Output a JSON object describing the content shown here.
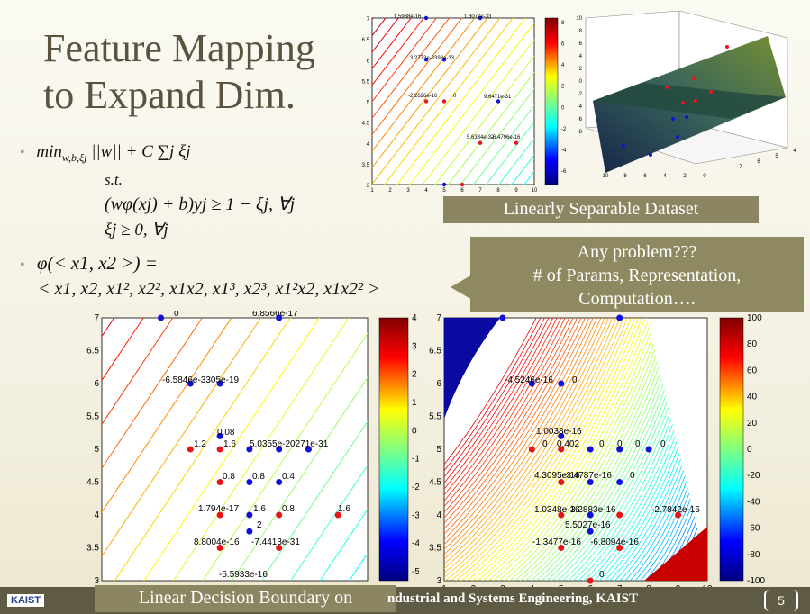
{
  "slide": {
    "title_line1": "Feature Mapping",
    "title_line2": "to Expand Dim.",
    "bullet1_line1": "min",
    "bullet1_sub": "w,b,ξj",
    "bullet1_rest": "||w|| + C ∑j ξj",
    "bullet1_st": "s.t.",
    "bullet1_c1": "(wφ(xj) + b)yj ≥ 1 − ξj, ∀j",
    "bullet1_c2": "ξj ≥ 0, ∀j",
    "bullet2_line1": "φ(< x1, x2 >) =",
    "bullet2_line2": "< x1, x2, x1², x2², x1x2, x1³, x2³, x1²x2, x1x2² >",
    "caption_top": "Linearly Separable Dataset",
    "callout_l1": "Any problem???",
    "callout_l2": "# of Params, Representation,",
    "callout_l3": "Computation….",
    "caption_bottom": "Linear Decision Boundary on",
    "footer_text": "ndustrial and Systems Engineering, KAIST",
    "logo": "KAIST",
    "page_number": "5"
  },
  "colors": {
    "title": "#5b5340",
    "caption_bg": "#8b8561",
    "footer_bg": "#5e5a44",
    "red_point": "#e8141b",
    "blue_point": "#1010d8"
  },
  "chart_data": [
    {
      "type": "scatter",
      "name_hint": "top-left contour plot",
      "xlim": [
        1,
        10
      ],
      "ylim": [
        3,
        7
      ],
      "x_ticks": [
        "1",
        "2",
        "3",
        "4",
        "5",
        "6",
        "7",
        "8",
        "9",
        "10"
      ],
      "y_ticks": [
        "3",
        "3.5",
        "4",
        "4.5",
        "5",
        "5.5",
        "6",
        "6.5",
        "7"
      ],
      "colorbar_ticks": [
        "8",
        "6",
        "4",
        "2",
        "0",
        "-2",
        "-4",
        "-6"
      ],
      "labels": [
        "1.5988e-16",
        "1.8077e-33",
        "3.2773e-3393e-33",
        "-2.2626e-16",
        "0",
        "9.6471e-31",
        "5.6384e-32",
        "-6.4796e-16"
      ],
      "red_points": [
        [
          4,
          5
        ],
        [
          5,
          5
        ],
        [
          7,
          4
        ],
        [
          9,
          4
        ],
        [
          6,
          3
        ]
      ],
      "blue_points": [
        [
          4,
          7
        ],
        [
          7,
          7
        ],
        [
          4,
          6
        ],
        [
          5,
          6
        ],
        [
          8,
          5
        ],
        [
          5,
          3
        ]
      ]
    },
    {
      "type": "scatter",
      "name_hint": "top-right 3D surface plot",
      "x_ticks": [
        "10",
        "8",
        "6",
        "4",
        "2",
        "0"
      ],
      "y_ticks": [
        "7",
        "6",
        "5",
        "4"
      ],
      "z_ticks": [
        "10",
        "8",
        "6",
        "4",
        "2",
        "0",
        "-2",
        "-4",
        "-6",
        "-8"
      ]
    },
    {
      "type": "scatter",
      "name_hint": "bottom-left contour plot",
      "xlim": [
        1,
        10
      ],
      "ylim": [
        3,
        7
      ],
      "y_ticks": [
        "3",
        "3.5",
        "4",
        "4.5",
        "5",
        "5.5",
        "6",
        "6.5",
        "7"
      ],
      "colorbar_ticks": [
        "4",
        "3",
        "2",
        "1",
        "0",
        "-1",
        "-2",
        "-3",
        "-4",
        "-5"
      ],
      "labels": [
        "0",
        "6.8566e-17",
        "-6.5846e-3305e-19",
        "0.08",
        "1.2",
        "1.6",
        "5.0355e-20271e-31",
        "0.8",
        "0.8",
        "0.4",
        "1.794e-17",
        "1.6",
        "0.8",
        "1.6",
        "2",
        "8.8004e-16",
        "-7.4413e-31",
        "-5.5933e-16"
      ],
      "red_points": [
        [
          4,
          5
        ],
        [
          5,
          5
        ],
        [
          5,
          4.5
        ],
        [
          5,
          4
        ],
        [
          7,
          4
        ],
        [
          9,
          4
        ],
        [
          5,
          3.5
        ],
        [
          7,
          3.5
        ]
      ],
      "blue_points": [
        [
          3,
          7
        ],
        [
          7,
          7
        ],
        [
          4,
          6
        ],
        [
          5,
          6
        ],
        [
          5,
          5.2
        ],
        [
          6,
          5
        ],
        [
          7,
          5
        ],
        [
          8,
          5
        ],
        [
          6,
          4.5
        ],
        [
          7,
          4.5
        ],
        [
          6,
          4
        ],
        [
          6,
          3.75
        ]
      ]
    },
    {
      "type": "scatter",
      "name_hint": "bottom-right contour plot",
      "xlim": [
        1,
        10
      ],
      "ylim": [
        3,
        7
      ],
      "x_ticks": [
        "1",
        "2",
        "3",
        "4",
        "5",
        "6",
        "7",
        "8",
        "9",
        "10"
      ],
      "y_ticks": [
        "3",
        "3.5",
        "4",
        "4.5",
        "5",
        "5.5",
        "6",
        "6.5",
        "7"
      ],
      "colorbar_ticks": [
        "100",
        "80",
        "60",
        "40",
        "20",
        "0",
        "-20",
        "-40",
        "-60",
        "-80",
        "-100"
      ],
      "labels": [
        "-4.5246e-16",
        "0",
        "1.0038e-16",
        "0",
        "0.402",
        "0",
        "0",
        "0",
        "0",
        "4.3095e-16",
        "-3.4787e-16",
        "0",
        "1.0348e-16",
        "3.2883e-16",
        "-2.7842e-16",
        "5.5027e-16",
        "-1.3477e-16",
        "-6.8094e-16",
        "0"
      ],
      "red_points": [
        [
          4,
          5
        ],
        [
          5,
          5
        ],
        [
          5,
          4.5
        ],
        [
          5,
          4
        ],
        [
          7,
          4
        ],
        [
          9,
          4
        ],
        [
          5,
          3.5
        ],
        [
          7,
          3.5
        ],
        [
          6,
          3
        ]
      ],
      "blue_points": [
        [
          3,
          7
        ],
        [
          7,
          7
        ],
        [
          4,
          6
        ],
        [
          5,
          6
        ],
        [
          5,
          5.2
        ],
        [
          6,
          5
        ],
        [
          7,
          5
        ],
        [
          8,
          5
        ],
        [
          6,
          4.5
        ],
        [
          7,
          4.5
        ],
        [
          6,
          4
        ],
        [
          6,
          3.75
        ]
      ]
    }
  ]
}
